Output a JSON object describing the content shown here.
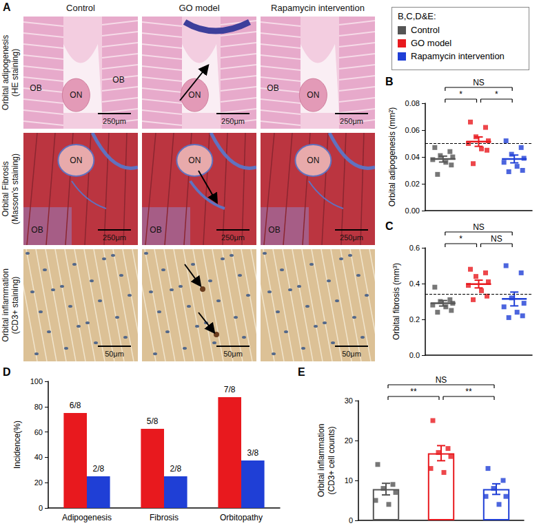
{
  "panel_a": {
    "label": "A",
    "columns": [
      "Control",
      "GO model",
      "Rapamycin intervention"
    ],
    "rows": [
      {
        "label": [
          "Orbital adipogenesis",
          "(HE staining)"
        ],
        "scale_bar": "250μm",
        "marks": [
          [
            "ON",
            "OB",
            "OB"
          ],
          [
            "ON"
          ],
          [
            "ON",
            "OB"
          ]
        ]
      },
      {
        "label": [
          "Orbital Fibrosis",
          "(Masson's staining)"
        ],
        "scale_bar": "250μm",
        "marks": [
          [
            "ON",
            "OB"
          ],
          [
            "ON",
            "OB"
          ],
          [
            "ON",
            "OB"
          ]
        ]
      },
      {
        "label": [
          "Orbital inflammation",
          "(CD3+ staining)"
        ],
        "scale_bar": "50μm",
        "marks": [
          [],
          [],
          []
        ]
      }
    ]
  },
  "legend_box": {
    "title": "B,C,D&E:",
    "entries": [
      {
        "name": "Control",
        "color": "#555555"
      },
      {
        "name": "GO model",
        "color": "#e8191e"
      },
      {
        "name": "Rapamycin intervention",
        "color": "#1f3fd6"
      }
    ]
  },
  "chart_data": [
    {
      "panel": "B",
      "type": "scatter",
      "y_label": "Orbital adipogenesis (mm²)",
      "tick_labels": "y",
      "grid": false,
      "ylim": [
        0,
        0.08
      ],
      "yticks": [
        {
          "value": 0,
          "label": "0.00"
        },
        0.02,
        0.04,
        0.06,
        0.08
      ],
      "threshold": 0.047,
      "series": [
        {
          "name": "Control",
          "color": "#555555",
          "marker": "square",
          "values": [
            0.047,
            0.044,
            0.041,
            0.04,
            0.038,
            0.036,
            0.034,
            0.027
          ],
          "mean": 0.0384,
          "sem": 0.0022
        },
        {
          "name": "GO model",
          "color": "#e8191e",
          "marker": "square",
          "values": [
            0.066,
            0.062,
            0.055,
            0.052,
            0.05,
            0.046,
            0.045,
            0.035
          ],
          "mean": 0.0514,
          "sem": 0.0035
        },
        {
          "name": "Rapamycin intervention",
          "color": "#1f3fd6",
          "marker": "square",
          "values": [
            0.052,
            0.047,
            0.042,
            0.039,
            0.036,
            0.033,
            0.03,
            0.029
          ],
          "mean": 0.0385,
          "sem": 0.0029
        }
      ],
      "comparisons": [
        {
          "between": [
            "Control",
            "GO model"
          ],
          "label": "*"
        },
        {
          "between": [
            "GO model",
            "Rapamycin intervention"
          ],
          "label": "*"
        },
        {
          "between": [
            "Control",
            "Rapamycin intervention"
          ],
          "label": "NS"
        }
      ]
    },
    {
      "panel": "C",
      "type": "scatter",
      "y_label": "Orbital fibrosis (mm³)",
      "tick_labels": "y",
      "grid": false,
      "ylim": [
        0,
        0.6
      ],
      "yticks": [
        {
          "value": 0,
          "label": "0.0"
        },
        0.2,
        0.4,
        0.6
      ],
      "threshold": 0.34,
      "series": [
        {
          "name": "Control",
          "color": "#555555",
          "marker": "square",
          "values": [
            0.38,
            0.31,
            0.3,
            0.29,
            0.28,
            0.27,
            0.25,
            0.24
          ],
          "mean": 0.29,
          "sem": 0.0154
        },
        {
          "name": "GO model",
          "color": "#e8191e",
          "marker": "square",
          "values": [
            0.48,
            0.46,
            0.44,
            0.41,
            0.39,
            0.36,
            0.33,
            0.31
          ],
          "mean": 0.3975,
          "sem": 0.0217
        },
        {
          "name": "Rapamycin intervention",
          "color": "#1f3fd6",
          "marker": "square",
          "values": [
            0.5,
            0.46,
            0.32,
            0.29,
            0.27,
            0.24,
            0.22,
            0.21
          ],
          "mean": 0.314,
          "sem": 0.0386
        }
      ],
      "comparisons": [
        {
          "between": [
            "Control",
            "GO model"
          ],
          "label": "*"
        },
        {
          "between": [
            "GO model",
            "Rapamycin intervention"
          ],
          "label": "NS"
        },
        {
          "between": [
            "Control",
            "Rapamycin intervention"
          ],
          "label": "NS"
        }
      ]
    },
    {
      "panel": "D",
      "type": "bar",
      "y_label": "Incidence(%)",
      "grid": false,
      "categories": [
        "Adipogenesis",
        "Fibrosis",
        "Orbitopathy"
      ],
      "ylim": [
        0,
        100
      ],
      "yticks": [
        0,
        20,
        40,
        60,
        80,
        100
      ],
      "data_labels": true,
      "series": [
        {
          "name": "GO model",
          "color": "#e8191e",
          "values": [
            75,
            62.5,
            87.5
          ],
          "value_labels": [
            "6/8",
            "5/8",
            "7/8"
          ]
        },
        {
          "name": "Rapamycin intervention",
          "color": "#1f3fd6",
          "values": [
            25,
            25,
            37.5
          ],
          "value_labels": [
            "2/8",
            "2/8",
            "3/8"
          ]
        }
      ]
    },
    {
      "panel": "E",
      "type": "bar",
      "y_label": [
        "Orbital inflammation",
        "(CD3+ cell counts)"
      ],
      "tick_labels": "y",
      "grid": false,
      "ylim": [
        0,
        30
      ],
      "yticks": [
        0,
        10,
        20,
        30
      ],
      "series": [
        {
          "name": "Control",
          "color": "#555555",
          "marker": "square",
          "values": [
            14,
            9,
            8,
            7,
            5,
            4
          ],
          "mean": 7.83,
          "sem": 1.45
        },
        {
          "name": "GO model",
          "color": "#e8191e",
          "marker": "square",
          "values": [
            25,
            18,
            17,
            16,
            13,
            12
          ],
          "mean": 16.83,
          "sem": 1.89
        },
        {
          "name": "Rapamycin intervention",
          "color": "#1f3fd6",
          "marker": "square",
          "values": [
            13,
            10,
            8,
            6,
            6,
            4
          ],
          "mean": 7.83,
          "sem": 1.33
        }
      ],
      "comparisons": [
        {
          "between": [
            "Control",
            "GO model"
          ],
          "label": "**"
        },
        {
          "between": [
            "GO model",
            "Rapamycin intervention"
          ],
          "label": "**"
        },
        {
          "between": [
            "Control",
            "Rapamycin intervention"
          ],
          "label": "NS"
        }
      ]
    }
  ]
}
